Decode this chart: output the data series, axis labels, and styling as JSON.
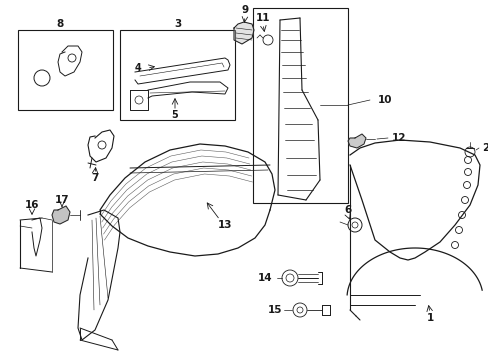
{
  "background_color": "#ffffff",
  "fig_width": 4.89,
  "fig_height": 3.6,
  "dpi": 100,
  "line_color": "#1a1a1a",
  "label_fontsize": 7.5
}
